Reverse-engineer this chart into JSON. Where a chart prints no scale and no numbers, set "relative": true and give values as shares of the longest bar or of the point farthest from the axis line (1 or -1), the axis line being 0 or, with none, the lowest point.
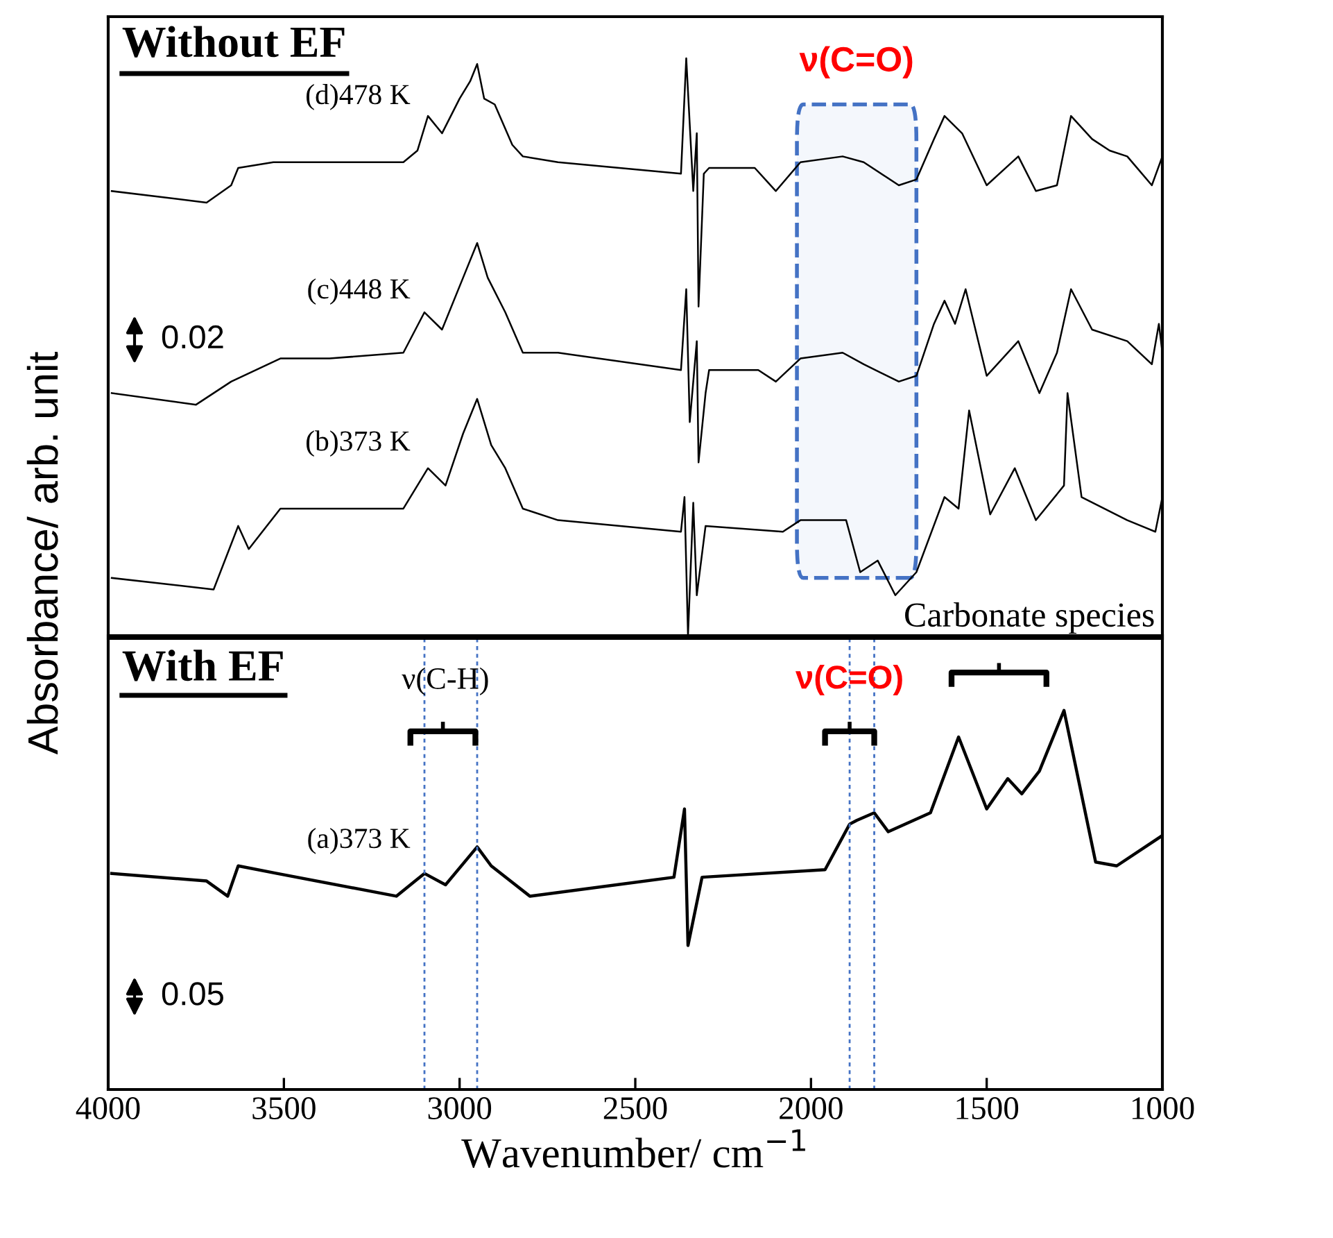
{
  "chart_data": [
    {
      "type": "line",
      "title": "Without EF",
      "ylabel": "Absorbance/ arb. unit",
      "xlim": [
        4000,
        1000
      ],
      "tick_labels": false,
      "relative": true,
      "series": [
        {
          "name": "(d)478 K",
          "color": "#000000",
          "x": [
            3990,
            3720,
            3650,
            3630,
            3530,
            3370,
            3160,
            3120,
            3090,
            3050,
            3000,
            2970,
            2950,
            2930,
            2900,
            2850,
            2820,
            2720,
            2370,
            2355,
            2335,
            2325,
            2320,
            2305,
            2290,
            2160,
            2100,
            2030,
            1910,
            1850,
            1750,
            1700,
            1650,
            1620,
            1570,
            1500,
            1410,
            1360,
            1300,
            1260,
            1200,
            1150,
            1100,
            1030,
            1000
          ],
          "values": [
            0.77,
            0.75,
            0.78,
            0.81,
            0.82,
            0.82,
            0.82,
            0.84,
            0.9,
            0.87,
            0.93,
            0.96,
            0.99,
            0.93,
            0.92,
            0.85,
            0.83,
            0.82,
            0.8,
            1.0,
            0.77,
            0.87,
            0.57,
            0.8,
            0.81,
            0.81,
            0.77,
            0.82,
            0.83,
            0.82,
            0.78,
            0.79,
            0.86,
            0.9,
            0.87,
            0.78,
            0.83,
            0.77,
            0.78,
            0.9,
            0.86,
            0.84,
            0.83,
            0.78,
            0.83
          ]
        },
        {
          "name": "(c)448 K",
          "color": "#000000",
          "x": [
            3990,
            3750,
            3650,
            3510,
            3370,
            3160,
            3100,
            3050,
            2990,
            2950,
            2920,
            2870,
            2820,
            2720,
            2370,
            2355,
            2345,
            2325,
            2320,
            2300,
            2290,
            2150,
            2100,
            2030,
            1910,
            1850,
            1750,
            1700,
            1650,
            1620,
            1590,
            1560,
            1500,
            1410,
            1350,
            1300,
            1260,
            1200,
            1100,
            1030,
            1010,
            1000
          ],
          "values": [
            0.42,
            0.4,
            0.44,
            0.48,
            0.48,
            0.49,
            0.56,
            0.53,
            0.62,
            0.68,
            0.62,
            0.56,
            0.49,
            0.49,
            0.46,
            0.6,
            0.37,
            0.51,
            0.3,
            0.42,
            0.46,
            0.46,
            0.44,
            0.48,
            0.49,
            0.47,
            0.44,
            0.45,
            0.54,
            0.58,
            0.54,
            0.6,
            0.45,
            0.51,
            0.42,
            0.49,
            0.6,
            0.53,
            0.51,
            0.47,
            0.54,
            0.49
          ]
        },
        {
          "name": "(b)373 K",
          "color": "#000000",
          "x": [
            3990,
            3700,
            3630,
            3600,
            3510,
            3370,
            3160,
            3090,
            3040,
            2990,
            2950,
            2910,
            2870,
            2820,
            2720,
            2370,
            2360,
            2350,
            2335,
            2325,
            2300,
            2080,
            2030,
            1900,
            1860,
            1810,
            1760,
            1700,
            1620,
            1580,
            1550,
            1490,
            1420,
            1360,
            1280,
            1270,
            1230,
            1100,
            1020,
            1000
          ],
          "values": [
            0.1,
            0.08,
            0.19,
            0.15,
            0.22,
            0.22,
            0.22,
            0.29,
            0.26,
            0.35,
            0.41,
            0.33,
            0.29,
            0.22,
            0.2,
            0.18,
            0.24,
            0.0,
            0.23,
            0.07,
            0.19,
            0.18,
            0.2,
            0.2,
            0.11,
            0.13,
            0.07,
            0.11,
            0.24,
            0.22,
            0.39,
            0.21,
            0.29,
            0.2,
            0.26,
            0.42,
            0.24,
            0.2,
            0.18,
            0.24
          ]
        }
      ],
      "bands": [
        {
          "axis": "x",
          "from": 2040,
          "to": 1700,
          "label": "ν(C=O)",
          "color": "#4472c4"
        }
      ],
      "annotations": [
        "0.02",
        "Carbonate species"
      ]
    },
    {
      "type": "line",
      "title": "With EF",
      "xlabel": "Wavenumber/ cm$^{−1}$",
      "xlim": [
        4000,
        1000
      ],
      "xticks": [
        4000,
        3500,
        3000,
        2500,
        2000,
        1500,
        1000
      ],
      "tick_labels": "x",
      "relative": true,
      "series": [
        {
          "name": "(a)373 K",
          "color": "#000000",
          "x": [
            3990,
            3720,
            3660,
            3630,
            3520,
            3180,
            3100,
            3040,
            2950,
            2910,
            2800,
            2390,
            2360,
            2350,
            2310,
            1960,
            1890,
            1870,
            1820,
            1780,
            1660,
            1580,
            1500,
            1440,
            1400,
            1350,
            1280,
            1190,
            1130,
            1000
          ],
          "values": [
            0.57,
            0.55,
            0.51,
            0.59,
            0.57,
            0.51,
            0.57,
            0.54,
            0.64,
            0.59,
            0.51,
            0.56,
            0.74,
            0.38,
            0.56,
            0.58,
            0.7,
            0.71,
            0.73,
            0.68,
            0.73,
            0.93,
            0.74,
            0.82,
            0.78,
            0.84,
            1.0,
            0.6,
            0.59,
            0.67
          ]
        }
      ],
      "ref_lines": [
        {
          "axis": "x",
          "value": 3100,
          "color": "#4472c4",
          "line_style": "dotted"
        },
        {
          "axis": "x",
          "value": 2950,
          "color": "#4472c4",
          "line_style": "dotted"
        },
        {
          "axis": "x",
          "value": 1890,
          "color": "#4472c4",
          "line_style": "dotted"
        },
        {
          "axis": "x",
          "value": 1820,
          "color": "#4472c4",
          "line_style": "dotted"
        }
      ],
      "annotations": [
        "0.05",
        "ν(C-H)",
        "ν(C=O)"
      ]
    }
  ]
}
